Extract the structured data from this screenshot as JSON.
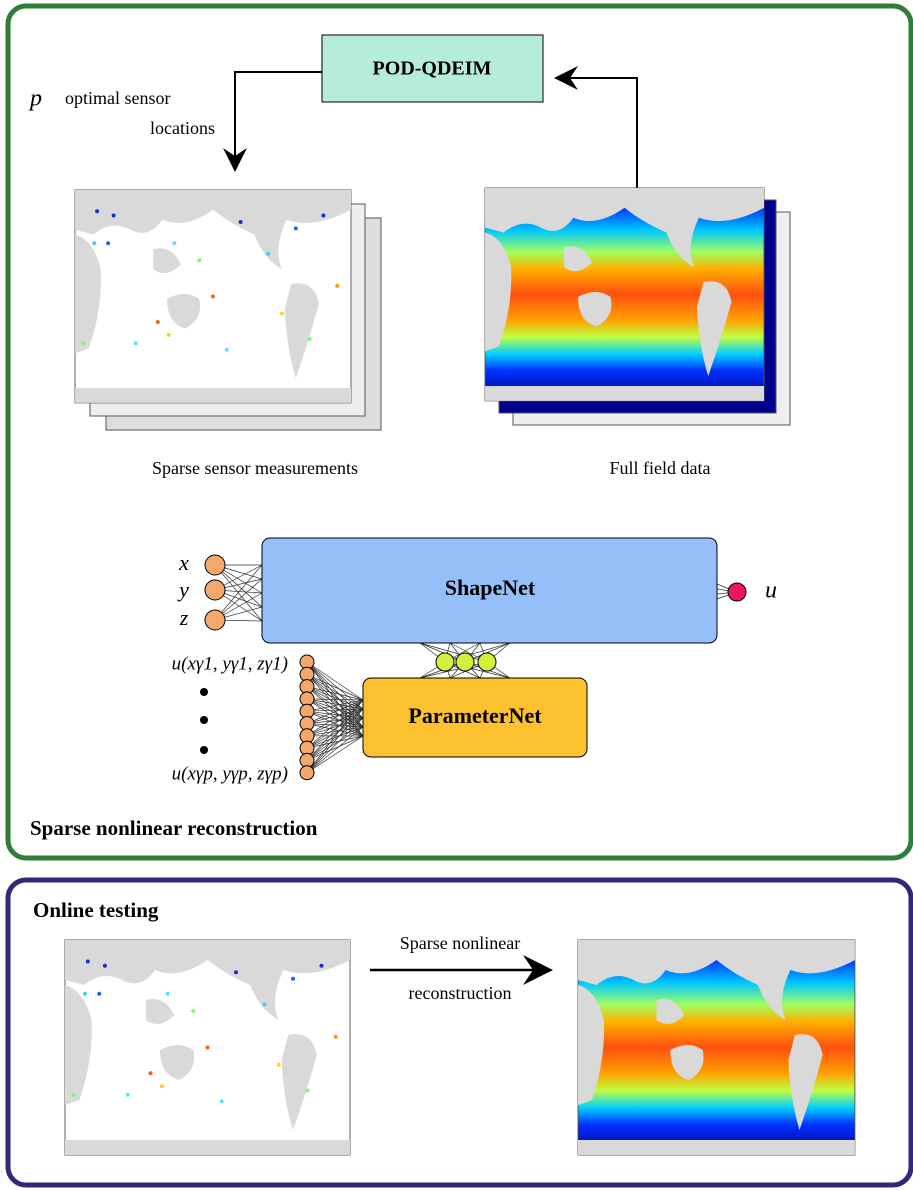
{
  "header": {
    "top_box": "POD-QDEIM",
    "sensor_note_var": "p",
    "sensor_note_line1": "optimal sensor",
    "sensor_note_line2": "locations"
  },
  "captions": {
    "sparse": "Sparse sensor measurements",
    "full": "Full field data"
  },
  "network": {
    "inputs": [
      "x",
      "y",
      "z"
    ],
    "shapenet": "ShapeNet",
    "output": "u",
    "parameternet": "ParameterNet",
    "param_inputs": [
      "u(xγ1, yγ1, zγ1)",
      "u(xγp, yγp, zγp)"
    ]
  },
  "panels": {
    "top": "Sparse nonlinear reconstruction",
    "bottom": "Online testing"
  },
  "online": {
    "arrow_line1": "Sparse nonlinear",
    "arrow_line2": "reconstruction"
  }
}
